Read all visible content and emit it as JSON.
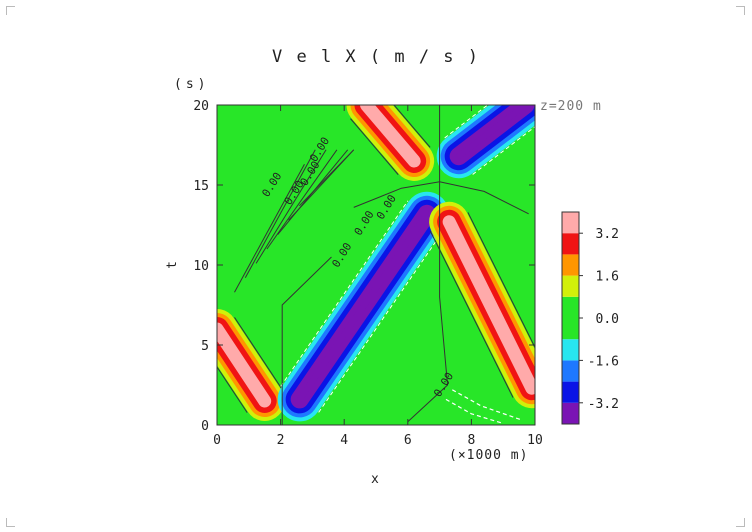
{
  "chart_data": {
    "type": "heatmap",
    "title": "VelX(m/s)",
    "title_display": "V e l X ( m / s )",
    "xlabel": "x",
    "ylabel": "t",
    "x_unit": "(×1000 m)",
    "y_unit": "(s)",
    "annotation": "z=200 m",
    "xlim": [
      0,
      10
    ],
    "ylim": [
      0,
      20
    ],
    "x_ticks": [
      0,
      2,
      4,
      6,
      8,
      10
    ],
    "y_ticks": [
      0,
      5,
      10,
      15,
      20
    ],
    "colorbar": {
      "levels": [
        -4.0,
        -3.2,
        -2.4,
        -1.6,
        -0.8,
        0.8,
        1.6,
        2.4,
        3.2,
        4.0
      ],
      "colors": [
        "#7a14b4",
        "#0a14e6",
        "#1e78ff",
        "#28e6f0",
        "#28e628",
        "#d2f00a",
        "#ff9600",
        "#f01414",
        "#ffaaaa"
      ],
      "tick_labels": [
        "-3.2",
        "-1.6",
        "0.0",
        "1.6",
        "3.2"
      ],
      "tick_values": [
        -3.2,
        -1.6,
        0.0,
        1.6,
        3.2
      ]
    },
    "features": [
      {
        "kind": "positive band",
        "from": [
          0.0,
          6.0
        ],
        "to": [
          1.5,
          1.5
        ],
        "peak": 4.0
      },
      {
        "kind": "negative band",
        "from": [
          2.6,
          1.6
        ],
        "to": [
          6.6,
          13.2
        ],
        "peak": -4.0
      },
      {
        "kind": "positive band",
        "from": [
          4.7,
          20.0
        ],
        "to": [
          6.2,
          16.5
        ],
        "peak": 4.0
      },
      {
        "kind": "positive band",
        "from": [
          7.3,
          12.7
        ],
        "to": [
          9.9,
          2.3
        ],
        "peak": 4.0
      },
      {
        "kind": "negative band",
        "from": [
          7.6,
          16.8
        ],
        "to": [
          9.7,
          20.0
        ],
        "peak": -4.0
      }
    ],
    "contour_labels": [
      "0.00",
      "0.00",
      "0.00",
      "0.00",
      "0.00",
      "0.00",
      "0.00",
      "0.00"
    ]
  }
}
